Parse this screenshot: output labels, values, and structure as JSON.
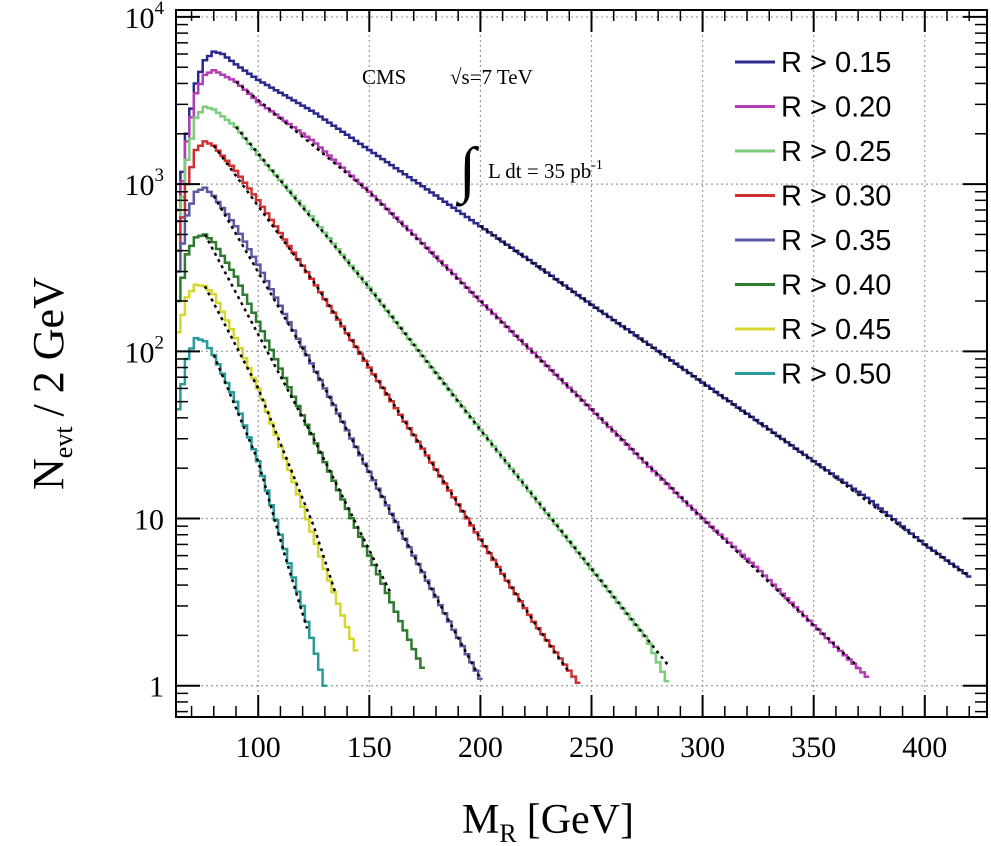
{
  "chart_data": {
    "type": "line",
    "x_axis": {
      "label_main": "M",
      "label_sub": "R",
      "label_unit": "[GeV]",
      "range": [
        63,
        428
      ],
      "ticks": [
        100,
        150,
        200,
        250,
        300,
        350,
        400
      ],
      "tick_labels": [
        "100",
        "150",
        "200",
        "250",
        "300",
        "350",
        "400"
      ]
    },
    "y_axis": {
      "label_main": "N",
      "label_sub": "evt",
      "label_rest": "/ 2 GeV",
      "scale": "log",
      "range": [
        0.65,
        11000
      ],
      "ticks": [
        1,
        10,
        100,
        1000,
        10000
      ],
      "tick_labels": [
        {
          "base": "1",
          "exp": ""
        },
        {
          "base": "10",
          "exp": ""
        },
        {
          "base": "10",
          "exp": "2"
        },
        {
          "base": "10",
          "exp": "3"
        },
        {
          "base": "10",
          "exp": "4"
        }
      ]
    },
    "grid": true,
    "legend_position": "top-right",
    "annotations": {
      "experiment": "CMS",
      "energy": "√s=7 TeV",
      "lumi_text": "L dt = 35 pb",
      "lumi_exp": "-1"
    },
    "series": [
      {
        "name": "R > 0.15",
        "color": "#2a2a8c",
        "fit_color": "#000000",
        "points": [
          [
            64,
            700
          ],
          [
            68,
            2000
          ],
          [
            72,
            4000
          ],
          [
            76,
            5500
          ],
          [
            80,
            6200
          ],
          [
            84,
            6000
          ],
          [
            90,
            5200
          ],
          [
            100,
            4200
          ],
          [
            125,
            2700
          ],
          [
            150,
            1600
          ],
          [
            175,
            950
          ],
          [
            200,
            560
          ],
          [
            225,
            330
          ],
          [
            250,
            190
          ],
          [
            275,
            112
          ],
          [
            300,
            65
          ],
          [
            325,
            38
          ],
          [
            350,
            22
          ],
          [
            375,
            13
          ],
          [
            400,
            7
          ],
          [
            420,
            4.5
          ]
        ],
        "fit": [
          [
            200,
            560
          ],
          [
            250,
            190
          ],
          [
            300,
            65
          ],
          [
            350,
            22
          ],
          [
            400,
            7
          ],
          [
            420,
            4.5
          ]
        ]
      },
      {
        "name": "R > 0.20",
        "color": "#b43cb4",
        "fit_color": "#000000",
        "points": [
          [
            64,
            600
          ],
          [
            68,
            1800
          ],
          [
            72,
            3500
          ],
          [
            76,
            4500
          ],
          [
            80,
            4800
          ],
          [
            90,
            4100
          ],
          [
            100,
            3100
          ],
          [
            125,
            1800
          ],
          [
            150,
            900
          ],
          [
            175,
            430
          ],
          [
            200,
            200
          ],
          [
            225,
            95
          ],
          [
            250,
            45
          ],
          [
            275,
            21
          ],
          [
            300,
            10
          ],
          [
            325,
            5
          ],
          [
            350,
            2.3
          ],
          [
            375,
            1.1
          ]
        ],
        "fit": [
          [
            90,
            4100
          ],
          [
            150,
            900
          ],
          [
            200,
            200
          ],
          [
            250,
            45
          ],
          [
            300,
            10
          ],
          [
            350,
            2.3
          ],
          [
            370,
            1.3
          ]
        ]
      },
      {
        "name": "R > 0.25",
        "color": "#7ccc7c",
        "fit_color": "#000000",
        "points": [
          [
            64,
            500
          ],
          [
            68,
            1400
          ],
          [
            72,
            2500
          ],
          [
            76,
            2900
          ],
          [
            80,
            2800
          ],
          [
            90,
            2200
          ],
          [
            100,
            1500
          ],
          [
            125,
            620
          ],
          [
            150,
            240
          ],
          [
            175,
            90
          ],
          [
            200,
            34
          ],
          [
            225,
            13
          ],
          [
            250,
            5
          ],
          [
            275,
            1.9
          ],
          [
            285,
            1
          ]
        ],
        "fit": [
          [
            90,
            2200
          ],
          [
            150,
            240
          ],
          [
            200,
            34
          ],
          [
            250,
            5
          ],
          [
            285,
            1.3
          ]
        ]
      },
      {
        "name": "R > 0.30",
        "color": "#d03030",
        "fit_color": "#000000",
        "points": [
          [
            64,
            400
          ],
          [
            68,
            1000
          ],
          [
            72,
            1600
          ],
          [
            76,
            1800
          ],
          [
            80,
            1700
          ],
          [
            90,
            1200
          ],
          [
            100,
            800
          ],
          [
            125,
            260
          ],
          [
            150,
            80
          ],
          [
            175,
            25
          ],
          [
            200,
            7.5
          ],
          [
            225,
            2.3
          ],
          [
            245,
            1
          ]
        ],
        "fit": [
          [
            80,
            1700
          ],
          [
            125,
            260
          ],
          [
            175,
            25
          ],
          [
            225,
            2.3
          ],
          [
            240,
            1.2
          ]
        ]
      },
      {
        "name": "R > 0.35",
        "color": "#5a5aa0",
        "fit_color": "#000000",
        "points": [
          [
            64,
            300
          ],
          [
            68,
            650
          ],
          [
            72,
            900
          ],
          [
            76,
            950
          ],
          [
            80,
            850
          ],
          [
            90,
            560
          ],
          [
            100,
            330
          ],
          [
            125,
            80
          ],
          [
            150,
            19
          ],
          [
            175,
            4.5
          ],
          [
            200,
            1.1
          ]
        ],
        "fit": [
          [
            80,
            850
          ],
          [
            125,
            80
          ],
          [
            175,
            4.5
          ],
          [
            200,
            1.1
          ]
        ]
      },
      {
        "name": "R > 0.40",
        "color": "#2f7a2f",
        "fit_color": "#000000",
        "points": [
          [
            64,
            200
          ],
          [
            68,
            380
          ],
          [
            72,
            480
          ],
          [
            76,
            500
          ],
          [
            80,
            450
          ],
          [
            90,
            280
          ],
          [
            100,
            150
          ],
          [
            125,
            30
          ],
          [
            150,
            6
          ],
          [
            175,
            1.2
          ]
        ],
        "fit": [
          [
            76,
            500
          ],
          [
            125,
            30
          ],
          [
            160,
            3.5
          ]
        ]
      },
      {
        "name": "R > 0.45",
        "color": "#d6d630",
        "fit_color": "#000000",
        "points": [
          [
            64,
            130
          ],
          [
            68,
            210
          ],
          [
            72,
            250
          ],
          [
            76,
            245
          ],
          [
            80,
            220
          ],
          [
            90,
            120
          ],
          [
            100,
            60
          ],
          [
            115,
            18
          ],
          [
            130,
            5
          ],
          [
            145,
            1.5
          ]
        ],
        "fit": [
          [
            76,
            245
          ],
          [
            100,
            60
          ],
          [
            125,
            9
          ],
          [
            135,
            3.5
          ]
        ]
      },
      {
        "name": "R > 0.50",
        "color": "#2a9a9a",
        "fit_color": "#000000",
        "points": [
          [
            64,
            45
          ],
          [
            68,
            90
          ],
          [
            72,
            120
          ],
          [
            76,
            115
          ],
          [
            80,
            95
          ],
          [
            90,
            50
          ],
          [
            100,
            22
          ],
          [
            110,
            8
          ],
          [
            120,
            3
          ],
          [
            130,
            1
          ]
        ],
        "fit": [
          [
            80,
            95
          ],
          [
            100,
            22
          ],
          [
            112,
            6
          ],
          [
            122,
            2.2
          ]
        ]
      }
    ]
  }
}
